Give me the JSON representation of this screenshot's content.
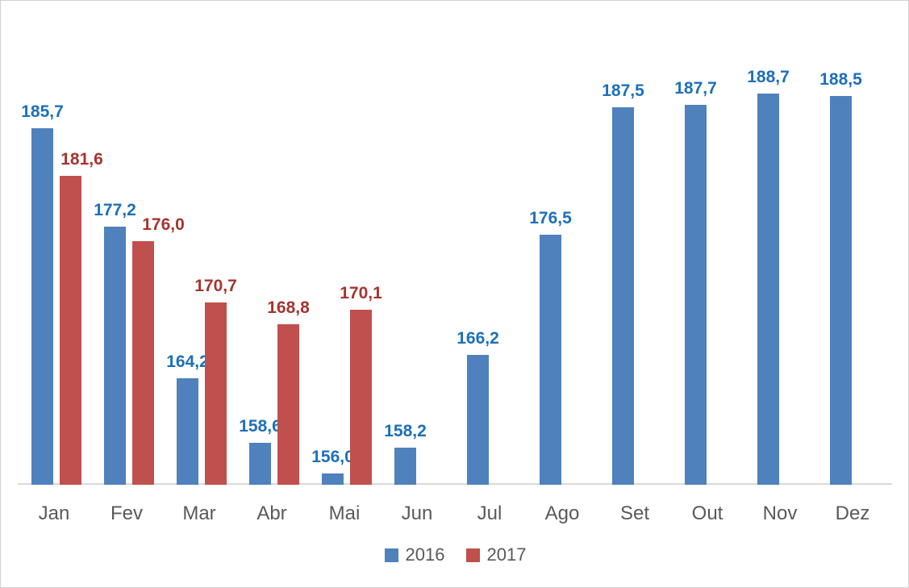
{
  "chart_data": {
    "type": "bar",
    "title": "",
    "xlabel": "",
    "ylabel": "",
    "categories": [
      "Jan",
      "Fev",
      "Mar",
      "Abr",
      "Mai",
      "Jun",
      "Jul",
      "Ago",
      "Set",
      "Out",
      "Nov",
      "Dez"
    ],
    "series": [
      {
        "name": "2016",
        "color": "#4F81BD",
        "label_color": "#1D70B8",
        "values": [
          185.7,
          177.2,
          164.2,
          158.6,
          156.0,
          158.2,
          166.2,
          176.5,
          187.5,
          187.7,
          188.7,
          188.5
        ],
        "labels": [
          "185,7",
          "177,2",
          "164,2",
          "158,6",
          "156,0",
          "158,2",
          "166,2",
          "176,5",
          "187,5",
          "187,7",
          "188,7",
          "188,5"
        ]
      },
      {
        "name": "2017",
        "color": "#C0504D",
        "label_color": "#A53430",
        "values": [
          181.6,
          176.0,
          170.7,
          168.8,
          170.1,
          null,
          null,
          null,
          null,
          null,
          null,
          null
        ],
        "labels": [
          "181,6",
          "176,0",
          "170,7",
          "168,8",
          "170,1",
          null,
          null,
          null,
          null,
          null,
          null,
          null
        ]
      }
    ],
    "ylim": [
      155,
      195
    ],
    "grid": false,
    "legend_position": "bottom",
    "decimal_separator": ","
  },
  "legend": {
    "items": [
      {
        "label": "2016",
        "color": "#4F81BD"
      },
      {
        "label": "2017",
        "color": "#C0504D"
      }
    ]
  },
  "axis": {
    "line_color": "#D9D9D9",
    "tick_label_color": "#595959"
  }
}
